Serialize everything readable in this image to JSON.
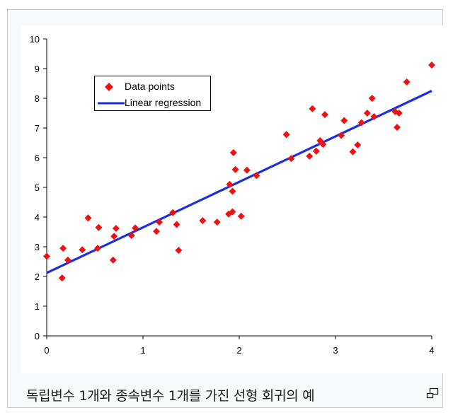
{
  "chart_data": {
    "type": "scatter",
    "x_ticks": [
      "0",
      "1",
      "2",
      "3",
      "4"
    ],
    "y_ticks": [
      "0",
      "1",
      "2",
      "3",
      "4",
      "5",
      "6",
      "7",
      "8",
      "9",
      "10"
    ],
    "xlim": [
      0,
      4
    ],
    "ylim": [
      0,
      10
    ],
    "legend_position": "top-left",
    "marker_color": "#ee1111",
    "line_color": "#1a2ee6",
    "series": [
      {
        "name": "Data points",
        "kind": "scatter",
        "points": [
          [
            0.0,
            2.68
          ],
          [
            0.16,
            1.95
          ],
          [
            0.17,
            2.95
          ],
          [
            0.22,
            2.55
          ],
          [
            0.37,
            2.9
          ],
          [
            0.43,
            3.97
          ],
          [
            0.53,
            2.95
          ],
          [
            0.54,
            3.65
          ],
          [
            0.69,
            2.55
          ],
          [
            0.7,
            3.35
          ],
          [
            0.72,
            3.62
          ],
          [
            0.88,
            3.38
          ],
          [
            0.92,
            3.63
          ],
          [
            1.14,
            3.52
          ],
          [
            1.17,
            3.83
          ],
          [
            1.31,
            4.15
          ],
          [
            1.35,
            3.75
          ],
          [
            1.37,
            2.88
          ],
          [
            1.62,
            3.88
          ],
          [
            1.77,
            3.83
          ],
          [
            1.89,
            4.1
          ],
          [
            1.9,
            5.1
          ],
          [
            1.93,
            4.87
          ],
          [
            1.93,
            4.18
          ],
          [
            1.94,
            6.17
          ],
          [
            1.96,
            5.6
          ],
          [
            2.02,
            4.03
          ],
          [
            2.08,
            5.58
          ],
          [
            2.18,
            5.4
          ],
          [
            2.49,
            6.78
          ],
          [
            2.54,
            5.97
          ],
          [
            2.73,
            6.05
          ],
          [
            2.76,
            7.65
          ],
          [
            2.8,
            6.22
          ],
          [
            2.84,
            6.57
          ],
          [
            2.87,
            6.45
          ],
          [
            2.89,
            7.45
          ],
          [
            3.06,
            6.75
          ],
          [
            3.09,
            7.25
          ],
          [
            3.18,
            6.2
          ],
          [
            3.23,
            6.43
          ],
          [
            3.27,
            7.18
          ],
          [
            3.33,
            7.5
          ],
          [
            3.38,
            8.0
          ],
          [
            3.4,
            7.38
          ],
          [
            3.62,
            7.55
          ],
          [
            3.64,
            7.02
          ],
          [
            3.66,
            7.5
          ],
          [
            3.74,
            8.55
          ],
          [
            4.0,
            9.12
          ]
        ]
      },
      {
        "name": "Linear regression",
        "kind": "line",
        "points": [
          [
            0,
            2.12
          ],
          [
            4,
            8.25
          ]
        ]
      }
    ]
  },
  "caption": {
    "text": "독립변수 1개와 종속변수 1개를 가진 선형 회귀의 예",
    "enlarge_icon": "enlarge-icon"
  }
}
